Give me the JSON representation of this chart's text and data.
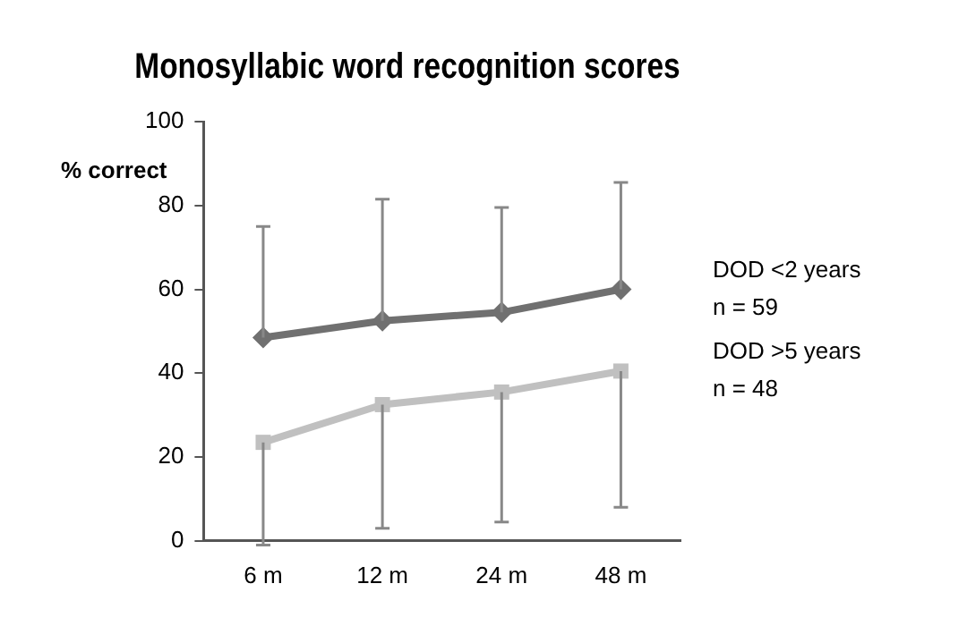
{
  "chart_data": {
    "type": "line",
    "title": "Monosyllabic word recognition scores",
    "ylabel": "% correct",
    "categories": [
      "6 m",
      "12 m",
      "24 m",
      "48 m"
    ],
    "series": [
      {
        "name": "DOD <2 years\nn = 59",
        "color": "#707070",
        "marker": "diamond",
        "values": [
          48.5,
          52.5,
          54.5,
          60
        ],
        "errors": [
          [
            48.5,
            75
          ],
          [
            52.5,
            81.5
          ],
          [
            54.5,
            79.5
          ],
          [
            60,
            85.5
          ]
        ]
      },
      {
        "name": "DOD >5 years\nn = 48",
        "color": "#c0c0c0",
        "marker": "square",
        "values": [
          23.5,
          32.5,
          35.5,
          40.5
        ],
        "errors": [
          [
            -1,
            23.5
          ],
          [
            3,
            32.5
          ],
          [
            4.5,
            35.5
          ],
          [
            8,
            40.5
          ]
        ]
      }
    ],
    "ylim": [
      0,
      100
    ],
    "yticks": [
      0,
      20,
      40,
      60,
      80,
      100
    ],
    "grid": false,
    "legend": false
  }
}
